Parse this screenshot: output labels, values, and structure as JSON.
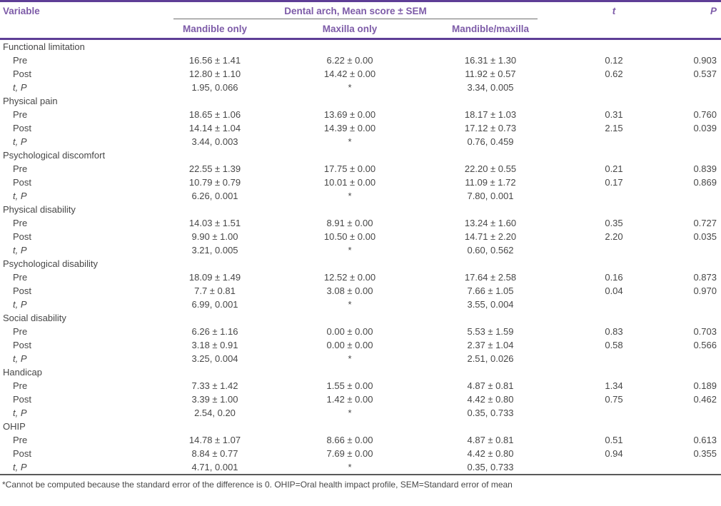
{
  "colors": {
    "accent_purple": "#7d5ba8",
    "rule_purple": "#5e3e96",
    "rule_gray": "#6f6f6f",
    "text_color": "#474747"
  },
  "table": {
    "headers": {
      "variable": "Variable",
      "span_header": "Dental arch, Mean score ± SEM",
      "sub": [
        "Mandible only",
        "Maxilla only",
        "Mandible/maxilla"
      ],
      "t": "t",
      "p": "P"
    },
    "groups": [
      {
        "label": "Functional limitation",
        "rows": [
          {
            "type": "pre",
            "label": "Pre",
            "mandible": "16.56 ± 1.41",
            "maxilla": "6.22 ± 0.00",
            "both": "16.31 ± 1.30",
            "t": "0.12",
            "p": "0.903"
          },
          {
            "type": "post",
            "label": "Post",
            "mandible": "12.80 ± 1.10",
            "maxilla": "14.42 ± 0.00",
            "both": "11.92 ± 0.57",
            "t": "0.62",
            "p": "0.537"
          },
          {
            "type": "tp",
            "label": "t, P",
            "mandible": "1.95, 0.066",
            "maxilla": "*",
            "both": "3.34, 0.005",
            "t": "",
            "p": ""
          }
        ]
      },
      {
        "label": "Physical pain",
        "rows": [
          {
            "type": "pre",
            "label": "Pre",
            "mandible": "18.65 ± 1.06",
            "maxilla": "13.69 ± 0.00",
            "both": "18.17 ± 1.03",
            "t": "0.31",
            "p": "0.760"
          },
          {
            "type": "post",
            "label": "Post",
            "mandible": "14.14 ± 1.04",
            "maxilla": "14.39 ± 0.00",
            "both": "17.12 ± 0.73",
            "t": "2.15",
            "p": "0.039"
          },
          {
            "type": "tp",
            "label": "t, P",
            "mandible": "3.44, 0.003",
            "maxilla": "*",
            "both": "0.76, 0.459",
            "t": "",
            "p": ""
          }
        ]
      },
      {
        "label": "Psychological\ndiscomfort",
        "rows": [
          {
            "type": "pre",
            "label": "Pre",
            "mandible": "22.55 ± 1.39",
            "maxilla": "17.75 ± 0.00",
            "both": "22.20 ± 0.55",
            "t": "0.21",
            "p": "0.839"
          },
          {
            "type": "post",
            "label": "Post",
            "mandible": "10.79 ± 0.79",
            "maxilla": "10.01 ± 0.00",
            "both": "11.09 ± 1.72",
            "t": "0.17",
            "p": "0.869"
          },
          {
            "type": "tp",
            "label": "t, P",
            "mandible": "6.26, 0.001",
            "maxilla": "*",
            "both": "7.80, 0.001",
            "t": "",
            "p": ""
          }
        ]
      },
      {
        "label": "Physical disability",
        "rows": [
          {
            "type": "pre",
            "label": "Pre",
            "mandible": "14.03 ± 1.51",
            "maxilla": "8.91 ± 0.00",
            "both": "13.24 ± 1.60",
            "t": "0.35",
            "p": "0.727"
          },
          {
            "type": "post",
            "label": "Post",
            "mandible": "9.90 ± 1.00",
            "maxilla": "10.50 ± 0.00",
            "both": "14.71 ± 2.20",
            "t": "2.20",
            "p": "0.035"
          },
          {
            "type": "tp",
            "label": "t, P",
            "mandible": "3.21, 0.005",
            "maxilla": "*",
            "both": "0.60, 0.562",
            "t": "",
            "p": ""
          }
        ]
      },
      {
        "label": "Psychological disability",
        "rows": [
          {
            "type": "pre",
            "label": "Pre",
            "mandible": "18.09 ± 1.49",
            "maxilla": "12.52 ± 0.00",
            "both": "17.64 ± 2.58",
            "t": "0.16",
            "p": "0.873"
          },
          {
            "type": "post",
            "label": "Post",
            "mandible": "7.7 ± 0.81",
            "maxilla": "3.08 ± 0.00",
            "both": "7.66 ± 1.05",
            "t": "0.04",
            "p": "0.970"
          },
          {
            "type": "tp",
            "label": "t, P",
            "mandible": "6.99, 0.001",
            "maxilla": "*",
            "both": "3.55, 0.004",
            "t": "",
            "p": ""
          }
        ]
      },
      {
        "label": "Social disability",
        "rows": [
          {
            "type": "pre",
            "label": "Pre",
            "mandible": "6.26 ± 1.16",
            "maxilla": "0.00 ± 0.00",
            "both": "5.53 ± 1.59",
            "t": "0.83",
            "p": "0.703"
          },
          {
            "type": "post",
            "label": "Post",
            "mandible": "3.18 ± 0.91",
            "maxilla": "0.00 ± 0.00",
            "both": "2.37 ± 1.04",
            "t": "0.58",
            "p": "0.566"
          },
          {
            "type": "tp",
            "label": "t, P",
            "mandible": "3.25, 0.004",
            "maxilla": "*",
            "both": "2.51, 0.026",
            "t": "",
            "p": ""
          }
        ]
      },
      {
        "label": "Handicap",
        "rows": [
          {
            "type": "pre",
            "label": "Pre",
            "mandible": "7.33 ± 1.42",
            "maxilla": "1.55 ± 0.00",
            "both": "4.87 ± 0.81",
            "t": "1.34",
            "p": "0.189"
          },
          {
            "type": "post",
            "label": "Post",
            "mandible": "3.39 ± 1.00",
            "maxilla": "1.42 ± 0.00",
            "both": "4.42 ± 0.80",
            "t": "0.75",
            "p": "0.462"
          },
          {
            "type": "tp",
            "label": "t, P",
            "mandible": "2.54, 0.20",
            "maxilla": "*",
            "both": "0.35, 0.733",
            "t": "",
            "p": ""
          }
        ]
      },
      {
        "label": "OHIP",
        "rows": [
          {
            "type": "pre",
            "label": "Pre",
            "mandible": "14.78 ± 1.07",
            "maxilla": "8.66 ± 0.00",
            "both": "4.87 ± 0.81",
            "t": "0.51",
            "p": "0.613"
          },
          {
            "type": "post",
            "label": "Post",
            "mandible": "8.84 ± 0.77",
            "maxilla": "7.69 ± 0.00",
            "both": "4.42 ± 0.80",
            "t": "0.94",
            "p": "0.355"
          },
          {
            "type": "tp",
            "label": "t, P",
            "mandible": "4.71, 0.001",
            "maxilla": "*",
            "both": "0.35, 0.733",
            "t": "",
            "p": ""
          }
        ]
      }
    ],
    "footnote": "*Cannot be computed because the standard error of the difference is 0. OHIP=Oral health impact profile, SEM=Standard error of mean"
  }
}
